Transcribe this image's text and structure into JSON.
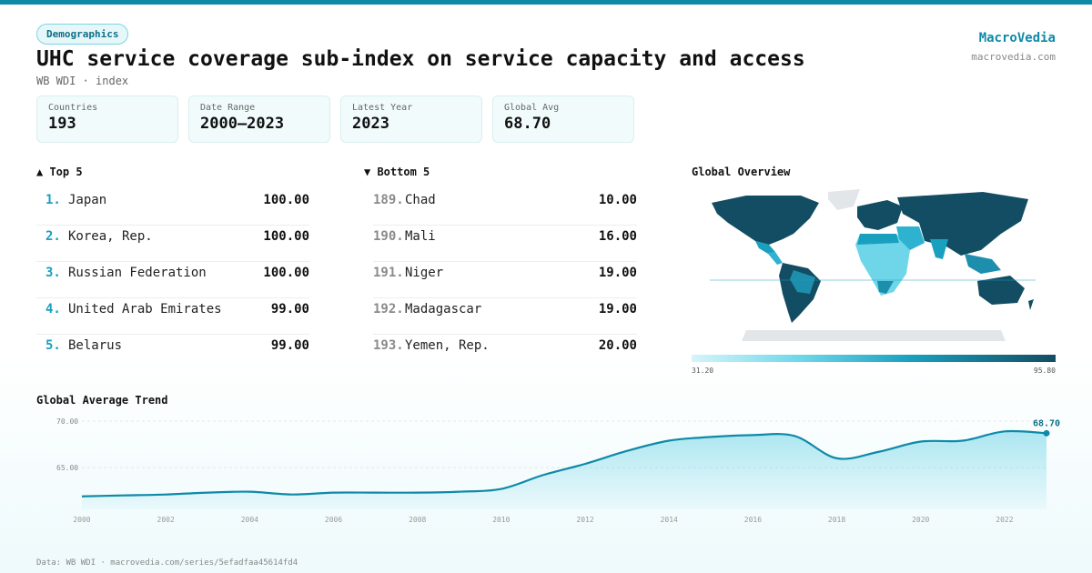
{
  "header": {
    "badge": "Demographics",
    "title": "UHC service coverage sub-index on service capacity and access",
    "subtitle": "WB WDI · index",
    "brand": "MacroVedia",
    "brand_url": "macrovedia.com"
  },
  "stats": [
    {
      "label": "Countries",
      "value": "193"
    },
    {
      "label": "Date Range",
      "value": "2000–2023"
    },
    {
      "label": "Latest Year",
      "value": "2023"
    },
    {
      "label": "Global Avg",
      "value": "68.70"
    }
  ],
  "top5": {
    "title": "▲ Top 5",
    "items": [
      {
        "rank": "1.",
        "name": "Japan",
        "value": "100.00"
      },
      {
        "rank": "2.",
        "name": "Korea, Rep.",
        "value": "100.00"
      },
      {
        "rank": "3.",
        "name": "Russian Federation",
        "value": "100.00"
      },
      {
        "rank": "4.",
        "name": "United Arab Emirates",
        "value": "99.00"
      },
      {
        "rank": "5.",
        "name": "Belarus",
        "value": "99.00"
      }
    ]
  },
  "bottom5": {
    "title": "▼ Bottom 5",
    "items": [
      {
        "rank": "189.",
        "name": "Chad",
        "value": "10.00"
      },
      {
        "rank": "190.",
        "name": "Mali",
        "value": "16.00"
      },
      {
        "rank": "191.",
        "name": "Niger",
        "value": "19.00"
      },
      {
        "rank": "192.",
        "name": "Madagascar",
        "value": "19.00"
      },
      {
        "rank": "193.",
        "name": "Yemen, Rep.",
        "value": "20.00"
      }
    ]
  },
  "map": {
    "title": "Global Overview",
    "legend_min": "31.20",
    "legend_max": "95.80",
    "colors": {
      "low": "#d5f5fa",
      "mid": "#1aa0bf",
      "high": "#134d63",
      "nodata": "#e3e6e8"
    }
  },
  "trend": {
    "title": "Global Average Trend"
  },
  "chart_data": {
    "type": "area",
    "title": "Global Average Trend",
    "x": [
      2000,
      2001,
      2002,
      2003,
      2004,
      2005,
      2006,
      2007,
      2008,
      2009,
      2010,
      2011,
      2012,
      2013,
      2014,
      2015,
      2016,
      2017,
      2018,
      2019,
      2020,
      2021,
      2022,
      2023
    ],
    "values": [
      61.9,
      62.0,
      62.1,
      62.3,
      62.4,
      62.1,
      62.3,
      62.3,
      62.3,
      62.4,
      62.7,
      64.2,
      65.4,
      66.8,
      67.9,
      68.3,
      68.5,
      68.4,
      66.0,
      66.7,
      67.8,
      67.9,
      68.9,
      68.7
    ],
    "x_ticks": [
      "2000",
      "2002",
      "2004",
      "2006",
      "2008",
      "2010",
      "2012",
      "2014",
      "2016",
      "2018",
      "2020",
      "2022"
    ],
    "y_ticks": [
      "65.00",
      "70.00"
    ],
    "ylim": [
      60.5,
      70.3
    ],
    "last_label": "68.70",
    "color": "#0e8aa8"
  },
  "footer": {
    "source": "Data: WB WDI · macrovedia.com/series/5efadfaa45614fd4"
  }
}
